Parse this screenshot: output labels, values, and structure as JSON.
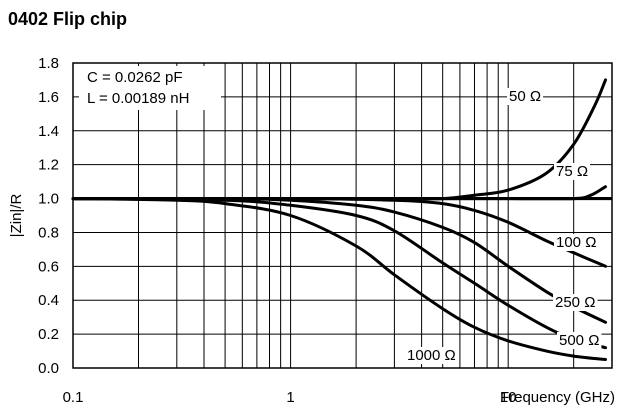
{
  "chart_data": {
    "type": "line",
    "title": "0402 Flip chip",
    "xlabel": "Frequency (GHz)",
    "ylabel": "|Zin|/R",
    "x_scale": "log",
    "xlim": [
      0.1,
      30
    ],
    "ylim": [
      0,
      1.8
    ],
    "x_ticks": [
      "0.1",
      "1",
      "10"
    ],
    "y_ticks": [
      "0.0",
      "0.2",
      "0.4",
      "0.6",
      "0.8",
      "1.0",
      "1.2",
      "1.4",
      "1.6",
      "1.8"
    ],
    "grid": true,
    "annotations": [
      "C = 0.0262 pF",
      "L = 0.00189 nH"
    ],
    "series": [
      {
        "name": "50 Ω",
        "x": [
          0.1,
          1,
          3,
          5,
          7,
          10,
          15,
          20,
          25,
          28
        ],
        "y": [
          1.0,
          1.0,
          1.0,
          1.0,
          1.02,
          1.05,
          1.15,
          1.32,
          1.55,
          1.7
        ]
      },
      {
        "name": "75 Ω",
        "x": [
          0.1,
          1,
          5,
          10,
          20,
          24,
          28
        ],
        "y": [
          1.0,
          1.0,
          1.0,
          1.0,
          1.0,
          1.02,
          1.07
        ]
      },
      {
        "name": "100 Ω",
        "x": [
          0.1,
          1,
          3,
          5,
          7,
          10,
          15,
          20,
          28
        ],
        "y": [
          1.0,
          1.0,
          0.99,
          0.97,
          0.93,
          0.86,
          0.75,
          0.68,
          0.6
        ]
      },
      {
        "name": "250 Ω",
        "x": [
          0.1,
          0.5,
          1,
          2,
          3,
          5,
          7,
          10,
          15,
          20,
          28
        ],
        "y": [
          1.0,
          1.0,
          0.99,
          0.96,
          0.92,
          0.83,
          0.74,
          0.6,
          0.45,
          0.36,
          0.27
        ]
      },
      {
        "name": "500 Ω",
        "x": [
          0.1,
          0.5,
          1,
          2,
          3,
          5,
          7,
          10,
          15,
          20,
          28
        ],
        "y": [
          1.0,
          0.99,
          0.96,
          0.9,
          0.81,
          0.62,
          0.5,
          0.37,
          0.24,
          0.17,
          0.12
        ]
      },
      {
        "name": "1000 Ω",
        "x": [
          0.1,
          0.3,
          0.5,
          1,
          2,
          3,
          5,
          7,
          10,
          15,
          20,
          28
        ],
        "y": [
          1.0,
          0.99,
          0.97,
          0.9,
          0.72,
          0.55,
          0.35,
          0.24,
          0.16,
          0.1,
          0.07,
          0.05
        ]
      }
    ],
    "series_labels": [
      "50 Ω",
      "75 Ω",
      "100 Ω",
      "250 Ω",
      "500 Ω",
      "1000 Ω"
    ],
    "reference_line": {
      "y": 1.0,
      "x": [
        0.1,
        30
      ]
    }
  }
}
